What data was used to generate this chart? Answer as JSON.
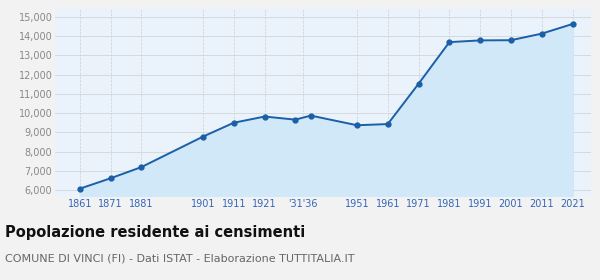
{
  "years": [
    1861,
    1871,
    1881,
    1901,
    1911,
    1921,
    1931,
    1936,
    1951,
    1961,
    1971,
    1981,
    1991,
    2001,
    2011,
    2021
  ],
  "population": [
    6080,
    6620,
    7200,
    8780,
    9500,
    9820,
    9660,
    9870,
    9370,
    9430,
    11520,
    13680,
    13770,
    13780,
    14120,
    14620
  ],
  "x_tick_labels": [
    "1861",
    "1871",
    "1881",
    "1901",
    "1911",
    "1921",
    "'31'36",
    "1951",
    "1961",
    "1971",
    "1981",
    "1991",
    "2001",
    "2011",
    "2021"
  ],
  "x_tick_positions": [
    1861,
    1871,
    1881,
    1901,
    1911,
    1921,
    1933.5,
    1951,
    1961,
    1971,
    1981,
    1991,
    2001,
    2011,
    2021
  ],
  "ylim": [
    5700,
    15400
  ],
  "yticks": [
    6000,
    7000,
    8000,
    9000,
    10000,
    11000,
    12000,
    13000,
    14000,
    15000
  ],
  "xlim": [
    1853,
    2027
  ],
  "line_color": "#1a5fa8",
  "fill_color": "#d0e8f8",
  "marker_color": "#1a5fa8",
  "grid_color": "#d0d0d0",
  "background_color": "#f2f2f2",
  "plot_bg_color": "#eaf3fc",
  "title": "Popolazione residente ai censimenti",
  "subtitle": "COMUNE DI VINCI (FI) - Dati ISTAT - Elaborazione TUTTITALIA.IT",
  "title_fontsize": 10.5,
  "subtitle_fontsize": 8.0
}
